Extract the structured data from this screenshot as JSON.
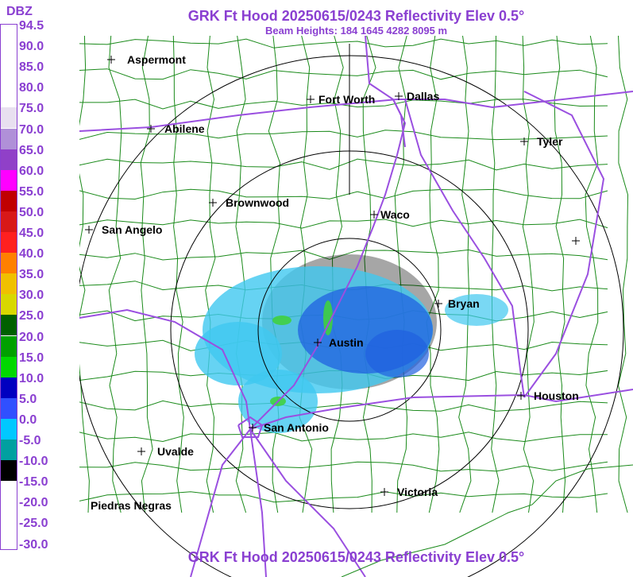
{
  "header": {
    "title": "GRK Ft Hood 20250615/0243 Reflectivity Elev 0.5°",
    "subtitle": "Beam Heights: 184 1645 4282 8095 m"
  },
  "footer": {
    "title": "GRK Ft Hood 20250615/0243 Reflectivity Elev 0.5°"
  },
  "legend": {
    "title": "DBZ",
    "labels": [
      "94.5",
      "90.0",
      "85.0",
      "80.0",
      "75.0",
      "70.0",
      "65.0",
      "60.0",
      "55.0",
      "50.0",
      "45.0",
      "40.0",
      "35.0",
      "30.0",
      "25.0",
      "20.0",
      "15.0",
      "10.0",
      "5.0",
      "0.0",
      "-5.0",
      "-10.0",
      "-15.0",
      "-20.0",
      "-25.0",
      "-30.0"
    ],
    "colors": [
      "#ffffff",
      "#ffffff",
      "#ffffff",
      "#ffffff",
      "#e8e0f0",
      "#b090d8",
      "#9040c8",
      "#ff00ff",
      "#c00000",
      "#d81818",
      "#ff2020",
      "#ff8000",
      "#f0c000",
      "#d8d800",
      "#006000",
      "#00a000",
      "#00d800",
      "#0000c0",
      "#3050ff",
      "#00c8ff",
      "#00a0a0",
      "#000000",
      "#ffffff",
      "#ffffff",
      "#ffffff",
      "#ffffff"
    ]
  },
  "cities": [
    {
      "name": "Aspermont"
    },
    {
      "name": "Fort Worth"
    },
    {
      "name": "Dallas"
    },
    {
      "name": "Abilene"
    },
    {
      "name": "Tyler"
    },
    {
      "name": "Brownwood"
    },
    {
      "name": "Waco"
    },
    {
      "name": "San Angelo"
    },
    {
      "name": "Bryan"
    },
    {
      "name": "Austin"
    },
    {
      "name": "Houston"
    },
    {
      "name": "San Antonio"
    },
    {
      "name": "Uvalde"
    },
    {
      "name": "Victoria"
    },
    {
      "name": "Piedras Negras"
    },
    {
      "name": ""
    }
  ],
  "colors": {
    "title": "#8a3fd1",
    "range_rings": "#000000",
    "county_lines": "#1a8a1a",
    "highways": "#9a4fe0",
    "echo_light": "#40c8f0",
    "echo_mid": "#2060e0",
    "echo_green": "#40d040"
  }
}
